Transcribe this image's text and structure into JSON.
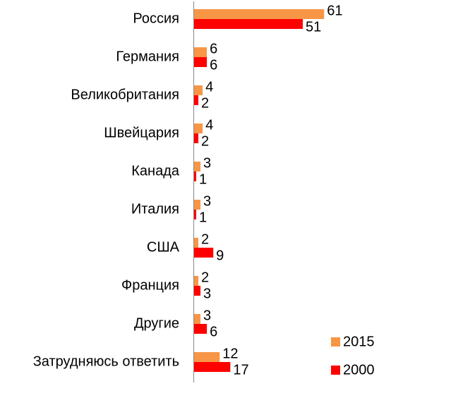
{
  "chart_data": {
    "type": "bar",
    "orientation": "horizontal",
    "categories": [
      "Россия",
      "Германия",
      "Великобритания",
      "Швейцария",
      "Канада",
      "Италия",
      "США",
      "Франция",
      "Другие",
      "Затрудняюсь ответить"
    ],
    "series": [
      {
        "name": "2015",
        "color": "#f79646",
        "values": [
          61,
          6,
          4,
          4,
          3,
          3,
          2,
          2,
          3,
          12
        ]
      },
      {
        "name": "2000",
        "color": "#ff0000",
        "values": [
          51,
          6,
          2,
          2,
          1,
          1,
          9,
          3,
          6,
          17
        ]
      }
    ],
    "legend": "bottom-right"
  }
}
